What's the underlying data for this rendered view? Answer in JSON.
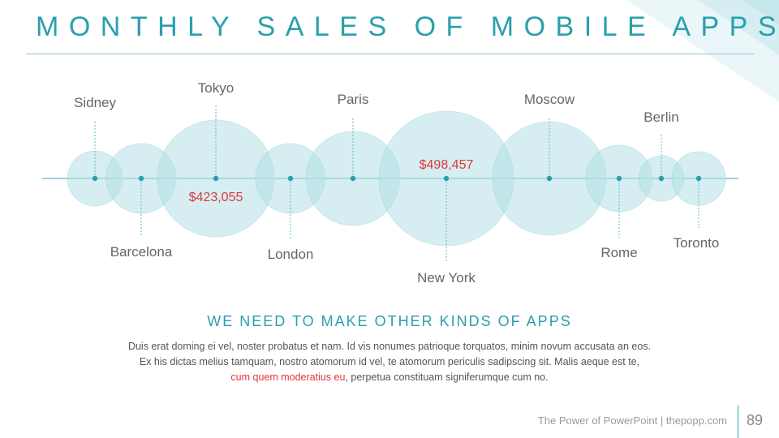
{
  "slide": {
    "title": "MONTHLY SALES OF MOBILE APPS",
    "subtitle": "WE NEED TO MAKE OTHER KINDS OF APPS",
    "body": {
      "line1": "Duis erat doming ei vel, noster probatus et nam. Id vis nonumes patrioque torquatos, minim novum accusata an eos.",
      "line2": "Ex his dictas melius tamquam, nostro atomorum id vel, te atomorum periculis sadipscing sit. Malis aeque est te,",
      "line3_highlight": "cum quem moderatius eu",
      "line3_rest": ", perpetua constituam signiferumque cum no."
    },
    "footer": "The Power of PowerPoint | thepopp.com",
    "page_number": "89"
  },
  "colors": {
    "accent": "#2a9fac",
    "highlight": "#e0373c",
    "bubble_fill": "#b5e0e5",
    "bubble_stroke": "#8ccdd5",
    "text": "#666666"
  },
  "chart_data": {
    "type": "bubble",
    "title": "MONTHLY SALES OF MOBILE APPS",
    "value_labels": [
      {
        "category": "Tokyo",
        "text": "$423,055"
      },
      {
        "category": "New York",
        "text": "$498,457"
      }
    ],
    "points": [
      {
        "city": "Sidney",
        "size": 34,
        "label_side": "top"
      },
      {
        "city": "Barcelona",
        "size": 43,
        "label_side": "bottom"
      },
      {
        "city": "Tokyo",
        "size": 72,
        "label_side": "top"
      },
      {
        "city": "London",
        "size": 43,
        "label_side": "bottom"
      },
      {
        "city": "Paris",
        "size": 58,
        "label_side": "top"
      },
      {
        "city": "New York",
        "size": 83,
        "label_side": "bottom"
      },
      {
        "city": "Moscow",
        "size": 70,
        "label_side": "top"
      },
      {
        "city": "Rome",
        "size": 41,
        "label_side": "bottom"
      },
      {
        "city": "Berlin",
        "size": 28,
        "label_side": "top"
      },
      {
        "city": "Toronto",
        "size": 33,
        "label_side": "bottom"
      }
    ]
  }
}
